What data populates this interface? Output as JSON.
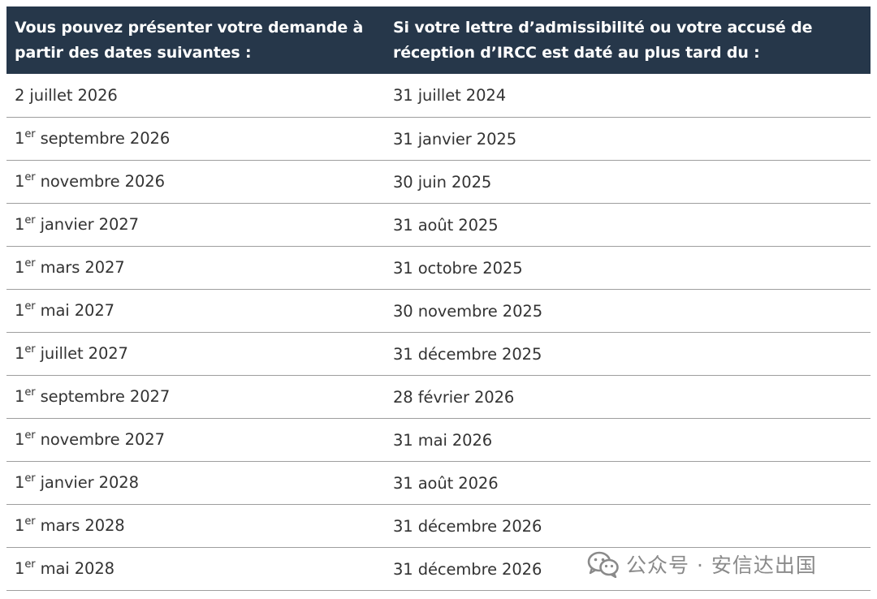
{
  "table": {
    "headers": {
      "col1": "Vous pouvez présenter votre demande à partir des dates suivantes :",
      "col2": "Si votre lettre d’admissibilité ou votre accusé de réception d’IRCC est daté au plus tard du :"
    },
    "rows": [
      {
        "day": "2",
        "ordinal": "",
        "rest": " juillet 2026",
        "end": "31 juillet 2024"
      },
      {
        "day": "1",
        "ordinal": "er",
        "rest": " septembre 2026",
        "end": "31 janvier 2025"
      },
      {
        "day": "1",
        "ordinal": "er",
        "rest": " novembre 2026",
        "end": "30 juin 2025"
      },
      {
        "day": "1",
        "ordinal": "er",
        "rest": " janvier 2027",
        "end": "31 août 2025"
      },
      {
        "day": "1",
        "ordinal": "er",
        "rest": " mars 2027",
        "end": "31 octobre 2025"
      },
      {
        "day": "1",
        "ordinal": "er",
        "rest": " mai 2027",
        "end": "30 novembre 2025"
      },
      {
        "day": "1",
        "ordinal": "er",
        "rest": " juillet 2027",
        "end": "31 décembre 2025"
      },
      {
        "day": "1",
        "ordinal": "er",
        "rest": " septembre 2027",
        "end": "28 février 2026"
      },
      {
        "day": "1",
        "ordinal": "er",
        "rest": " novembre 2027",
        "end": "31 mai 2026"
      },
      {
        "day": "1",
        "ordinal": "er",
        "rest": " janvier 2028",
        "end": "31 août 2026"
      },
      {
        "day": "1",
        "ordinal": "er",
        "rest": " mars 2028",
        "end": "31 décembre 2026"
      },
      {
        "day": "1",
        "ordinal": "er",
        "rest": " mai 2028",
        "end": "31 décembre 2026"
      }
    ]
  },
  "watermark": {
    "icon": "wechat-icon",
    "text": "公众号 · 安信达出国"
  },
  "colors": {
    "header_bg": "#26374a",
    "header_text": "#ffffff",
    "body_text": "#333333",
    "row_border": "#9e9e9e",
    "watermark": "#8a8a8a"
  }
}
